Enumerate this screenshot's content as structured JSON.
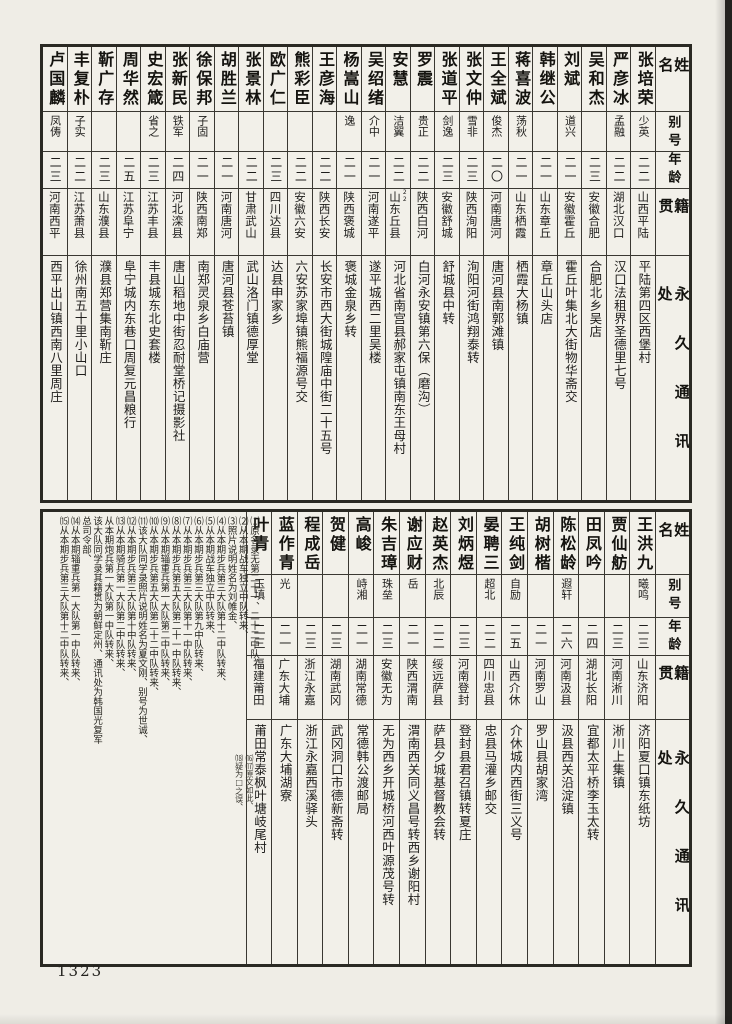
{
  "page_number": "1323",
  "column_headers": {
    "name": "姓名",
    "alias": "别号",
    "age": "年龄",
    "native": "籍贯",
    "address": "永久通讯处"
  },
  "top_table": {
    "people": [
      {
        "name": "张培荣",
        "alias": "少英",
        "age": "二二",
        "native": "山西平陆",
        "address": "平陆第四区西堡村"
      },
      {
        "name": "严彦冰",
        "alias": "孟融",
        "age": "二二",
        "native": "湖北汉口",
        "address": "汉口法租界圣德里七号"
      },
      {
        "name": "吴和杰",
        "alias": "",
        "age": "二三",
        "native": "安徽合肥",
        "address": "合肥北乡吴店"
      },
      {
        "name": "刘斌",
        "alias": "道兴",
        "age": "二一",
        "native": "安徽霍丘",
        "address": "霍丘叶集北大街物华斋交"
      },
      {
        "name": "韩继公",
        "alias": "",
        "age": "二一",
        "native": "山东章丘",
        "address": "章丘山头店"
      },
      {
        "name": "蒋喜波",
        "alias": "荡秋",
        "age": "二一",
        "native": "山东栖霞",
        "address": "栖霞大杨镇"
      },
      {
        "name": "王全斌",
        "alias": "俊杰",
        "age": "二〇",
        "native": "河南唐河",
        "address": "唐河县南郭滩镇"
      },
      {
        "name": "张文仲",
        "alias": "雪非",
        "age": "二三",
        "native": "陕西洵阳",
        "address": "洵阳河街鸿翔泰转"
      },
      {
        "name": "张道平",
        "alias": "剑逸",
        "age": "二三",
        "native": "安徽舒城",
        "address": "舒城县中转"
      },
      {
        "name": "罗震",
        "alias": "贵正",
        "age": "二二",
        "native": "陕西白河",
        "address": "白河永安镇第六保（磨沟）"
      },
      {
        "name": "安慧",
        "alias": "洁翼",
        "age": "二二",
        "native": "山东丘县",
        "native_note": "22",
        "address": "河北省南宫县郝家屯镇南东王母村"
      },
      {
        "name": "吴绍绪",
        "alias": "介中",
        "age": "二一",
        "native": "河南遂平",
        "address": "遂平城西二里吴楼"
      },
      {
        "name": "杨嵩山",
        "alias": "逸",
        "age": "二一",
        "native": "陕西褒城",
        "address": "褒城金泉乡转"
      },
      {
        "name": "王彦海",
        "alias": "",
        "age": "二二",
        "native": "陕西长安",
        "address": "长安市西大街城隍庙中街二十五号"
      },
      {
        "name": "熊彩臣",
        "alias": "",
        "age": "二二",
        "native": "安徽六安",
        "address": "六安苏家埠镇熊福源号交"
      },
      {
        "name": "欧广仁",
        "alias": "",
        "age": "二三",
        "native": "四川达县",
        "address": "达县申家乡"
      },
      {
        "name": "张景林",
        "alias": "",
        "age": "二二",
        "native": "甘肃武山",
        "address": "武山洛门镇德厚堂"
      },
      {
        "name": "胡胜兰",
        "alias": "",
        "age": "二一",
        "native": "河南唐河",
        "address": "唐河县苍苔镇"
      },
      {
        "name": "徐保邦",
        "alias": "子固",
        "age": "二一",
        "native": "陕西南郑",
        "address": "南郑灵泉乡白庙营"
      },
      {
        "name": "张新民",
        "alias": "铁军",
        "age": "二四",
        "native": "河北滦县",
        "address": "唐山稻地中街忍耐堂桥记摄影社"
      },
      {
        "name": "史宏箴",
        "alias": "省之",
        "age": "二三",
        "native": "江苏丰县",
        "address": "丰县城东北史套楼"
      },
      {
        "name": "周华然",
        "alias": "",
        "age": "二五",
        "native": "江苏阜宁",
        "address": "阜宁城内东巷口周复元昌粮行"
      },
      {
        "name": "靳广存",
        "alias": "",
        "age": "二三",
        "native": "山东濮县",
        "address": "濮县郑营集南靳庄"
      },
      {
        "name": "丰复朴",
        "alias": "子实",
        "age": "二二",
        "native": "江苏萧县",
        "address": "徐州南五十里小山口"
      },
      {
        "name": "卢国麟",
        "alias": "凤俦",
        "age": "二三",
        "native": "河南西平",
        "address": "西平出山镇西南八里周庄"
      }
    ]
  },
  "bottom_table": {
    "people": [
      {
        "name": "王洪九",
        "alias": "曦鸣",
        "age": "二三",
        "native": "山东济阳",
        "address": "济阳夏口镇东纸坊"
      },
      {
        "name": "贾仙舫",
        "alias": "",
        "age": "二三",
        "native": "河南淅川",
        "address": "淅川上集镇"
      },
      {
        "name": "田凤吟",
        "alias": "",
        "age": "二四",
        "native": "湖北长阳",
        "address": "宜都太平桥李玉太转"
      },
      {
        "name": "陈松龄",
        "alias": "遐轩",
        "age": "二六",
        "native": "河南汲县",
        "address": "汲县西关沿淀镇"
      },
      {
        "name": "胡树楷",
        "alias": "",
        "age": "二一",
        "native": "河南罗山",
        "address": "罗山县胡家湾"
      },
      {
        "name": "王纯剑",
        "alias": "自励",
        "age": "二五",
        "native": "山西介休",
        "address": "介休城内西街三义号"
      },
      {
        "name": "晏聘三",
        "alias": "超北",
        "age": "二二",
        "native": "四川忠县",
        "address": "忠县马灌乡邮交"
      },
      {
        "name": "刘炳煜",
        "alias": "",
        "age": "二三",
        "native": "河南登封",
        "address": "登封县君召镇转夏庄"
      },
      {
        "name": "赵英杰",
        "alias": "北辰",
        "age": "二二",
        "native": "绥远萨县",
        "address": "萨县夕城基督教会转"
      },
      {
        "name": "谢应财",
        "alias": "岳",
        "age": "二一",
        "native": "陕西渭南",
        "address": "渭南西关同义昌号转西乡谢阳村"
      },
      {
        "name": "朱吉璋",
        "alias": "珠垒",
        "age": "二三",
        "native": "安徽无为",
        "address": "无为西乡开城桥河西叶源茂号转"
      },
      {
        "name": "高峻",
        "alias": "峙湘",
        "age": "二一",
        "native": "湖南常德",
        "address": "常德韩公渡邮局"
      },
      {
        "name": "贺健",
        "alias": "",
        "age": "二三",
        "native": "湖南武冈",
        "address": "武冈洞口市德新斋转"
      },
      {
        "name": "程成岳",
        "alias": "",
        "age": "二三",
        "native": "浙江永嘉",
        "address": "浙江永嘉西溪驿头"
      },
      {
        "name": "蓝作青",
        "alias": "光",
        "age": "二一",
        "native": "广东大埔",
        "address": "广东大埔湖寮"
      },
      {
        "name": "叶青",
        "alias": "玉填",
        "age": "二三",
        "native": "福建莆田",
        "address": "莆田常泰枫叶塘岐尾村"
      }
    ],
    "notes": [
      "⑴原名录无第二十一、二十二中队、",
      "⑵从本期战车独立中队转来、",
      "⑶照片说明姓名为刘帷金、",
      "⑷从本期步兵第三大队第十二中队转来、",
      "⑸从本期战车独立中队转来、",
      "⑹从本期步兵第三大队第九中队转来、",
      "⑺从本期步兵第三大队第十一中队转来、",
      "⑻从本期步兵第五大队第二十一中队转来、",
      "⑼从本期辎重兵第一大队第二中队转来、",
      "⑽从本期步兵第五大队第二十二中队转来、",
      "⑾该大队同学录照片说明姓名为夏文刚、别号为世诚、",
      "⑿从本期步兵第三大队第十中队转来、",
      "⒀从本期骑兵第一大队第二中队转来、",
      "从本期炮兵第一大队第一中队转来、",
      "该大队同学录其籍贯为朝鲜定州、通讯处为韩国光复军总司令部、",
      "⒁从本期辎重兵第一大队第一中队转来、",
      "⒂从本期步兵第三大队第十二中队转来、"
    ],
    "extra_notes": [
      "⒃⒄原文如此、",
      "⒅疑为□之误、"
    ]
  }
}
